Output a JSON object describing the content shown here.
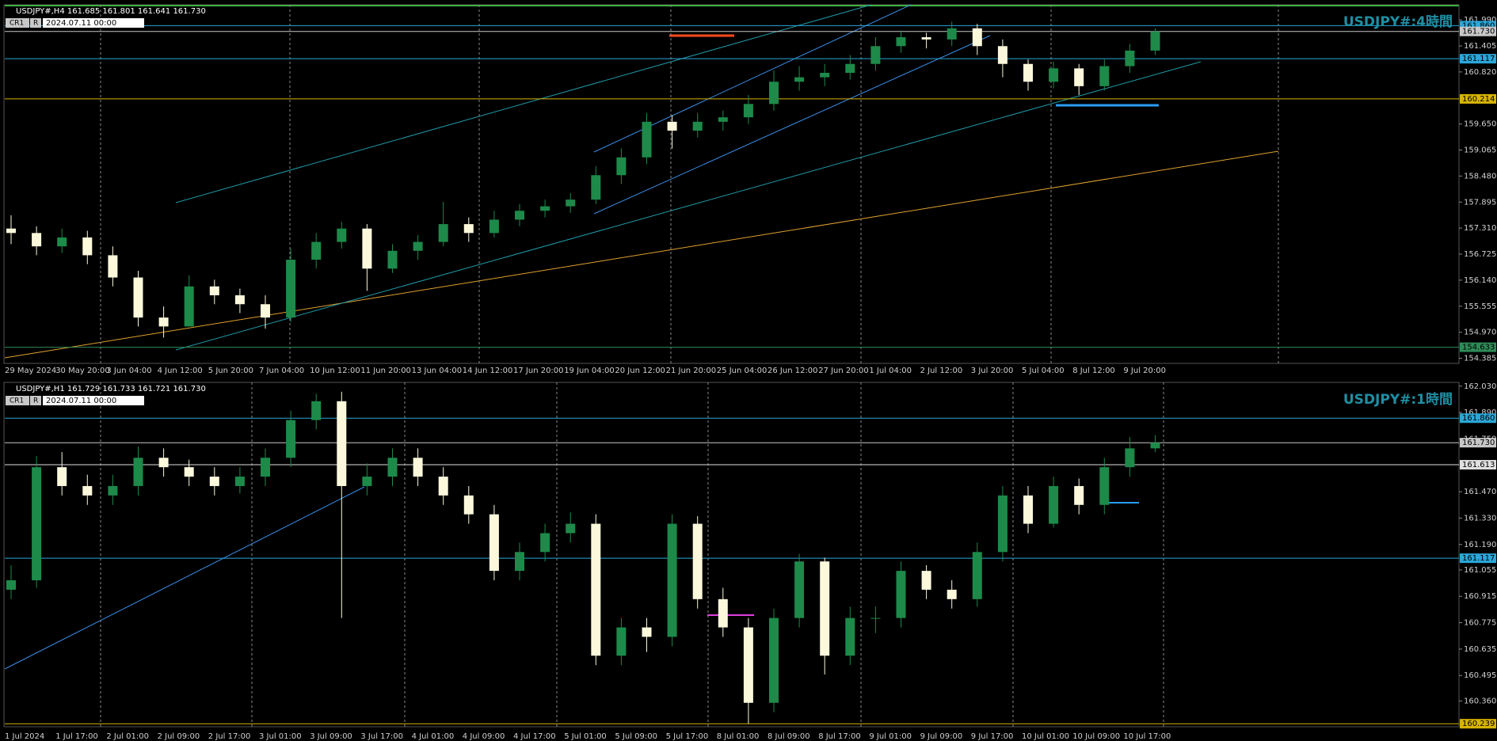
{
  "chart_data": [
    {
      "type": "candlestick",
      "header": "USDJPY#,H4  161.685 161.801 161.641 161.730",
      "cr": "CR1",
      "r": "R",
      "date": "2024.07.11 00:00",
      "watermark": "USDJPY#:4時間",
      "categories": [
        "29 May 2024",
        null,
        "30 May 20:00",
        null,
        "3 Jun 04:00",
        null,
        "4 Jun 12:00",
        null,
        "5 Jun 20:00",
        null,
        "7 Jun 04:00",
        null,
        "10 Jun 12:00",
        null,
        "11 Jun 20:00",
        null,
        "13 Jun 04:00",
        null,
        "14 Jun 12:00",
        null,
        "17 Jun 20:00",
        null,
        "19 Jun 04:00",
        null,
        "20 Jun 12:00",
        null,
        "21 Jun 20:00",
        null,
        "25 Jun 04:00",
        null,
        "26 Jun 12:00",
        null,
        "27 Jun 20:00",
        null,
        "1 Jul 04:00",
        null,
        "2 Jul 12:00",
        null,
        "3 Jul 20:00",
        null,
        "5 Jul 04:00",
        null,
        "8 Jul 12:00",
        null,
        "9 Jul 20:00",
        null
      ],
      "open": [
        157.3,
        157.2,
        156.9,
        157.1,
        156.7,
        156.2,
        155.3,
        155.1,
        156.0,
        155.8,
        155.6,
        155.3,
        156.6,
        157.0,
        157.3,
        156.4,
        156.8,
        157.0,
        157.4,
        157.2,
        157.5,
        157.7,
        157.8,
        157.95,
        158.5,
        158.9,
        159.7,
        159.5,
        159.7,
        159.8,
        160.1,
        160.6,
        160.7,
        160.8,
        161.0,
        161.4,
        161.6,
        161.55,
        161.8,
        161.4,
        161.0,
        160.6,
        160.9,
        160.5,
        160.95,
        161.3
      ],
      "high": [
        157.6,
        157.35,
        157.3,
        157.25,
        156.9,
        156.35,
        155.55,
        156.25,
        156.15,
        155.95,
        155.8,
        156.85,
        157.2,
        157.45,
        157.4,
        156.95,
        157.15,
        157.9,
        157.55,
        157.7,
        157.85,
        157.95,
        158.1,
        158.7,
        159.1,
        159.9,
        159.85,
        159.9,
        159.95,
        160.3,
        160.85,
        160.95,
        161.0,
        161.2,
        161.6,
        161.75,
        161.7,
        161.95,
        161.9,
        161.55,
        161.1,
        161.05,
        161.0,
        161.1,
        161.45,
        161.8
      ],
      "low": [
        156.95,
        156.7,
        156.75,
        156.5,
        156.0,
        155.1,
        154.85,
        155.15,
        155.6,
        155.4,
        155.05,
        155.2,
        156.4,
        156.85,
        155.9,
        156.3,
        156.6,
        156.9,
        157.0,
        157.1,
        157.35,
        157.55,
        157.65,
        157.85,
        158.3,
        158.75,
        159.1,
        159.35,
        159.5,
        159.65,
        159.95,
        160.4,
        160.5,
        160.65,
        160.85,
        161.25,
        161.35,
        161.4,
        161.2,
        160.7,
        160.4,
        160.45,
        160.3,
        160.4,
        160.8,
        161.2
      ],
      "close": [
        157.2,
        156.9,
        157.1,
        156.7,
        156.2,
        155.3,
        155.1,
        156.0,
        155.8,
        155.6,
        155.3,
        156.6,
        157.0,
        157.3,
        156.4,
        156.8,
        157.0,
        157.4,
        157.2,
        157.5,
        157.7,
        157.8,
        157.95,
        158.5,
        158.9,
        159.7,
        159.5,
        159.7,
        159.8,
        160.1,
        160.6,
        160.7,
        160.8,
        161.0,
        161.4,
        161.6,
        161.55,
        161.8,
        161.4,
        161.0,
        160.6,
        160.9,
        160.5,
        160.95,
        161.3,
        161.73
      ],
      "ylim": [
        154.27,
        162.33
      ],
      "yticks": [
        154.385,
        {
          "value": 154.97,
          "label": "154.970"
        },
        155.555,
        {
          "value": 156.14,
          "label": "156.140"
        },
        156.725,
        {
          "value": 157.31,
          "label": "157.310"
        },
        157.895,
        {
          "value": 158.48,
          "label": "158.480"
        },
        159.065,
        {
          "value": 159.65,
          "label": "159.650"
        },
        {
          "value": 160.82,
          "label": "160.820"
        },
        161.405,
        {
          "value": 161.99,
          "label": "161.990"
        }
      ],
      "up_color": "#1d8a4a",
      "down_color": "#fbf8dc",
      "price_lines": [
        {
          "price": {
            "value": 161.86,
            "label": "161.860"
          },
          "color": "#2aa7d8"
        },
        {
          "price": {
            "value": 161.73,
            "label": "161.730"
          },
          "color": "#c8c8c8"
        },
        {
          "price": 161.117,
          "color": "#2aa7d8"
        },
        {
          "price": 160.214,
          "color": "#d8b400"
        },
        {
          "price": 154.633,
          "color": "#2e8b57"
        }
      ]
    },
    {
      "type": "candlestick",
      "header": "USDJPY#,H1  161.729 161.733 161.721 161.730",
      "cr": "CR1",
      "r": "R",
      "date": "2024.07.11 00:00",
      "watermark": "USDJPY#:1時間",
      "categories": [
        "1 Jul 2024",
        null,
        "1 Jul 17:00",
        null,
        "2 Jul 01:00",
        null,
        "2 Jul 09:00",
        null,
        "2 Jul 17:00",
        null,
        "3 Jul 01:00",
        null,
        "3 Jul 09:00",
        null,
        "3 Jul 17:00",
        null,
        "4 Jul 01:00",
        null,
        "4 Jul 09:00",
        null,
        "4 Jul 17:00",
        null,
        "5 Jul 01:00",
        null,
        "5 Jul 09:00",
        null,
        "5 Jul 17:00",
        null,
        "8 Jul 01:00",
        null,
        "8 Jul 09:00",
        null,
        "8 Jul 17:00",
        null,
        "9 Jul 01:00",
        null,
        "9 Jul 09:00",
        null,
        "9 Jul 17:00",
        null,
        "10 Jul 01:00",
        null,
        "10 Jul 09:00",
        null,
        "10 Jul 17:00",
        null
      ],
      "open": [
        160.95,
        161.0,
        161.6,
        161.5,
        161.45,
        161.5,
        161.65,
        161.6,
        161.55,
        161.5,
        161.55,
        161.65,
        161.85,
        161.95,
        161.5,
        161.55,
        161.65,
        161.55,
        161.45,
        161.35,
        161.05,
        161.15,
        161.25,
        161.3,
        160.6,
        160.75,
        160.7,
        161.3,
        160.9,
        160.75,
        160.35,
        160.8,
        161.1,
        160.6,
        160.8,
        160.8,
        161.05,
        160.95,
        160.9,
        161.15,
        161.45,
        161.3,
        161.5,
        161.4,
        161.6,
        161.7
      ],
      "high": [
        161.08,
        161.66,
        161.68,
        161.56,
        161.56,
        161.71,
        161.7,
        161.64,
        161.6,
        161.6,
        161.7,
        161.9,
        161.99,
        162.0,
        161.62,
        161.7,
        161.7,
        161.6,
        161.5,
        161.4,
        161.2,
        161.3,
        161.36,
        161.35,
        160.8,
        160.8,
        161.35,
        161.34,
        160.96,
        160.8,
        160.85,
        161.14,
        161.12,
        160.86,
        160.86,
        161.1,
        161.08,
        161.0,
        161.2,
        161.5,
        161.5,
        161.55,
        161.54,
        161.65,
        161.76,
        161.77
      ],
      "low": [
        160.9,
        160.96,
        161.45,
        161.4,
        161.4,
        161.45,
        161.55,
        161.5,
        161.45,
        161.46,
        161.5,
        161.6,
        161.8,
        160.8,
        161.45,
        161.5,
        161.5,
        161.4,
        161.3,
        161.0,
        161.0,
        161.1,
        161.2,
        160.55,
        160.55,
        160.62,
        160.65,
        160.85,
        160.7,
        160.24,
        160.3,
        160.75,
        160.5,
        160.55,
        160.72,
        160.75,
        160.9,
        160.85,
        160.86,
        161.1,
        161.25,
        161.28,
        161.35,
        161.35,
        161.55,
        161.68
      ],
      "close": [
        161.0,
        161.6,
        161.5,
        161.45,
        161.5,
        161.65,
        161.6,
        161.55,
        161.5,
        161.55,
        161.65,
        161.85,
        161.95,
        161.5,
        161.55,
        161.65,
        161.55,
        161.45,
        161.35,
        161.05,
        161.15,
        161.25,
        161.3,
        160.6,
        160.75,
        160.7,
        161.3,
        160.9,
        160.75,
        160.35,
        160.8,
        161.1,
        160.6,
        160.8,
        160.8,
        161.05,
        160.95,
        160.9,
        161.15,
        161.45,
        161.3,
        161.5,
        161.4,
        161.6,
        161.7,
        161.73
      ],
      "ylim": [
        160.223,
        162.05
      ],
      "yticks": [
        {
          "value": 160.36,
          "label": "160.360"
        },
        160.495,
        160.635,
        160.775,
        160.915,
        161.055,
        {
          "value": 161.19,
          "label": "161.190"
        },
        {
          "value": 161.33,
          "label": "161.330"
        },
        {
          "value": 161.47,
          "label": "161.470"
        },
        {
          "value": 161.75,
          "label": "161.750"
        },
        {
          "value": 161.89,
          "label": "161.890"
        },
        {
          "value": 162.03,
          "label": "162.030"
        }
      ],
      "up_color": "#1d8a4a",
      "down_color": "#fbf8dc",
      "price_lines": [
        {
          "price": {
            "value": 161.86,
            "label": "161.860"
          },
          "color": "#2aa7d8"
        },
        {
          "price": {
            "value": 161.73,
            "label": "161.730"
          },
          "color": "#c8c8c8"
        },
        {
          "price": 161.613,
          "color": "#e0e0e0"
        },
        {
          "price": 161.117,
          "color": "#2aa7d8"
        },
        {
          "price": 160.239,
          "color": "#d8b400"
        }
      ]
    }
  ]
}
